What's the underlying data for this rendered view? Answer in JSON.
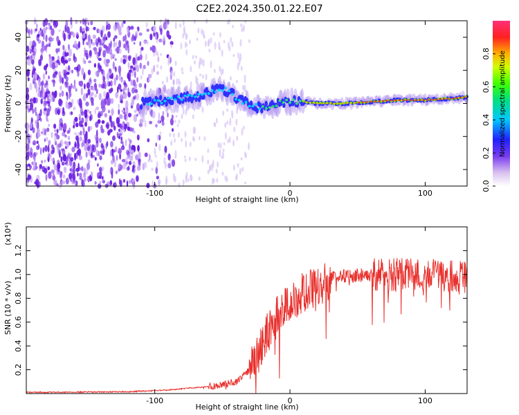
{
  "title": "C2E2.2024.350.01.22.E07",
  "spectrogram": {
    "type": "heatmap",
    "xlabel": "Height of straight line (km)",
    "ylabel": "Frequency (Hz)",
    "xlim": [
      -195,
      131
    ],
    "ylim": [
      -50,
      50
    ],
    "x_ticks": [
      -100,
      0,
      100
    ],
    "y_ticks": [
      -40,
      -20,
      0,
      20,
      40
    ],
    "colorbar": {
      "label": "Normalized spectral amplitude",
      "range": [
        0,
        1
      ],
      "ticks": [
        "0.0",
        "0.2",
        "0.4",
        "0.6",
        "0.8"
      ]
    },
    "frequency_track": [
      {
        "x": -110,
        "y": 0
      },
      {
        "x": -100,
        "y": 1
      },
      {
        "x": -90,
        "y": 2
      },
      {
        "x": -80,
        "y": 3
      },
      {
        "x": -70,
        "y": 4
      },
      {
        "x": -60,
        "y": 7
      },
      {
        "x": -50,
        "y": 9
      },
      {
        "x": -40,
        "y": 4
      },
      {
        "x": -30,
        "y": -1
      },
      {
        "x": -20,
        "y": -3
      },
      {
        "x": -10,
        "y": 0
      },
      {
        "x": 0,
        "y": 1
      },
      {
        "x": 10,
        "y": 1
      },
      {
        "x": 20,
        "y": 0
      },
      {
        "x": 40,
        "y": 0
      },
      {
        "x": 60,
        "y": 1
      },
      {
        "x": 80,
        "y": 2
      },
      {
        "x": 100,
        "y": 2
      },
      {
        "x": 120,
        "y": 3
      },
      {
        "x": 131,
        "y": 4
      }
    ],
    "noise_edge_x": -110
  },
  "snr": {
    "type": "line",
    "xlabel": "Height of straight line (km)",
    "ylabel": "SNR (10 * v/v)",
    "multiplier": "(x10⁴)",
    "xlim": [
      -195,
      131
    ],
    "ylim": [
      0,
      1.4
    ],
    "x_ticks": [
      -100,
      0,
      100
    ],
    "y_ticks": [
      "0.2",
      "0.4",
      "0.6",
      "0.8",
      "1.0",
      "1.2"
    ],
    "color": "#e8302c",
    "series": [
      {
        "x": -195,
        "y": 0.01
      },
      {
        "x": -120,
        "y": 0.015
      },
      {
        "x": -90,
        "y": 0.03
      },
      {
        "x": -70,
        "y": 0.05
      },
      {
        "x": -50,
        "y": 0.07
      },
      {
        "x": -40,
        "y": 0.1
      },
      {
        "x": -30,
        "y": 0.2
      },
      {
        "x": -25,
        "y": 0.3
      },
      {
        "x": -20,
        "y": 0.42
      },
      {
        "x": -15,
        "y": 0.55
      },
      {
        "x": -10,
        "y": 0.65
      },
      {
        "x": -5,
        "y": 0.7
      },
      {
        "x": 0,
        "y": 0.75
      },
      {
        "x": 10,
        "y": 0.85
      },
      {
        "x": 20,
        "y": 0.9
      },
      {
        "x": 30,
        "y": 0.97
      },
      {
        "x": 40,
        "y": 0.99
      },
      {
        "x": 60,
        "y": 1.0
      },
      {
        "x": 80,
        "y": 1.0
      },
      {
        "x": 100,
        "y": 1.0
      },
      {
        "x": 120,
        "y": 0.98
      },
      {
        "x": 131,
        "y": 0.97
      }
    ]
  }
}
